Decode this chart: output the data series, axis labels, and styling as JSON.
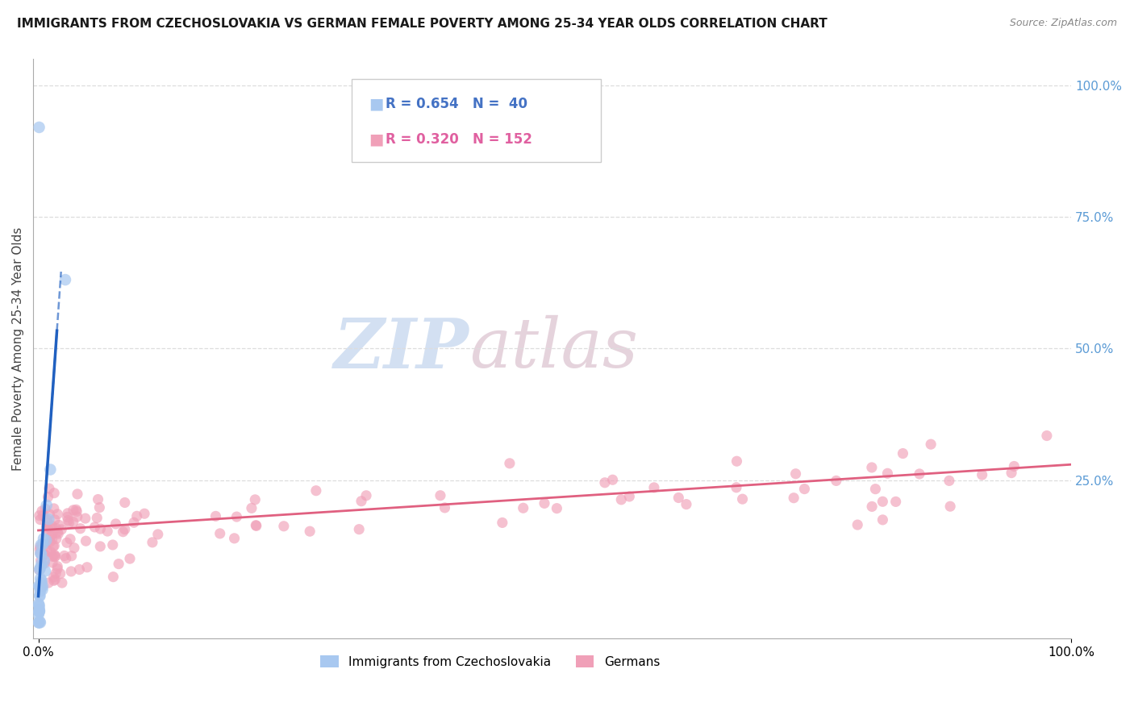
{
  "title": "IMMIGRANTS FROM CZECHOSLOVAKIA VS GERMAN FEMALE POVERTY AMONG 25-34 YEAR OLDS CORRELATION CHART",
  "source": "Source: ZipAtlas.com",
  "blue_label": "Immigrants from Czechoslovakia",
  "pink_label": "Germans",
  "blue_R": "0.654",
  "blue_N": "40",
  "pink_R": "0.320",
  "pink_N": "152",
  "blue_color": "#A8C8F0",
  "pink_color": "#F0A0B8",
  "blue_line_color": "#2060C0",
  "pink_line_color": "#E06080",
  "watermark": "ZIPatlas",
  "watermark_color_zip": "#B0C8E8",
  "watermark_color_atlas": "#D0B0C0",
  "xlim": [
    0.0,
    1.0
  ],
  "ylim": [
    -0.05,
    1.05
  ],
  "xticks": [
    0.0,
    1.0
  ],
  "xtick_labels": [
    "0.0%",
    "100.0%"
  ],
  "right_yticks": [
    0.25,
    0.5,
    0.75,
    1.0
  ],
  "right_ytick_labels": [
    "25.0%",
    "50.0%",
    "75.0%",
    "100.0%"
  ],
  "right_ytick_color": "#5B9BD5",
  "ylabel": "Female Poverty Among 25-34 Year Olds",
  "grid_color": "#DDDDDD",
  "legend_box_color": "#F5F5F5",
  "legend_border_color": "#CCCCCC",
  "blue_text_color": "#4472C4",
  "pink_text_color": "#E060A0",
  "title_fontsize": 11,
  "source_fontsize": 9,
  "tick_fontsize": 11,
  "ylabel_fontsize": 11
}
